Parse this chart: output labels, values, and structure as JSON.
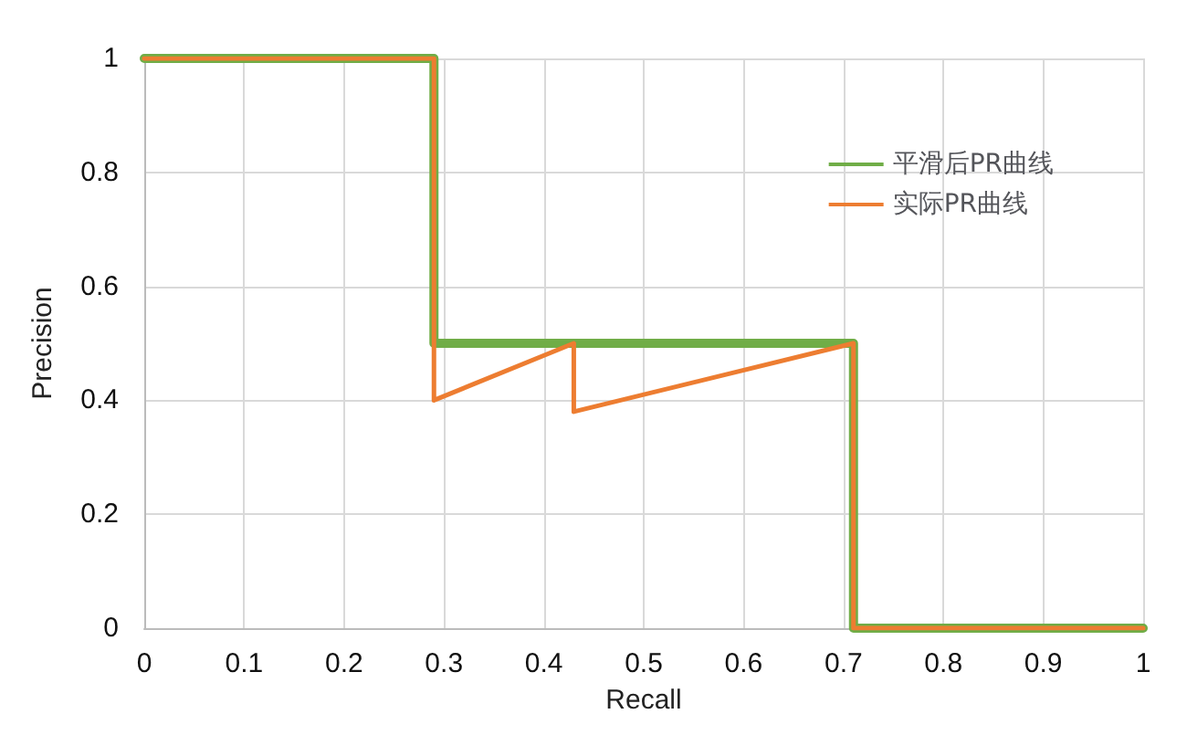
{
  "chart_data": {
    "type": "line",
    "xlabel": "Recall",
    "ylabel": "Precision",
    "series": [
      {
        "name": "平滑后PR曲线",
        "color": "#70ad47",
        "x": [
          0,
          0.29,
          0.29,
          0.71,
          0.71,
          1
        ],
        "values": [
          1,
          1,
          0.5,
          0.5,
          0,
          0
        ]
      },
      {
        "name": "实际PR曲线",
        "color": "#ed7d31",
        "x": [
          0,
          0.29,
          0.29,
          0.43,
          0.43,
          0.71,
          0.71,
          1
        ],
        "values": [
          1,
          1,
          0.4,
          0.5,
          0.38,
          0.5,
          0,
          0
        ]
      }
    ],
    "xlim": [
      0,
      1
    ],
    "xticks": [
      0,
      0.1,
      0.2,
      0.3,
      0.4,
      0.5,
      0.6,
      0.7,
      0.8,
      0.9,
      1
    ],
    "ylim": [
      0,
      1
    ],
    "yticks": [
      0,
      0.2,
      0.4,
      0.6,
      0.8,
      1
    ],
    "grid": true,
    "legend": "top right",
    "marker": "none",
    "line_style": "solid"
  }
}
